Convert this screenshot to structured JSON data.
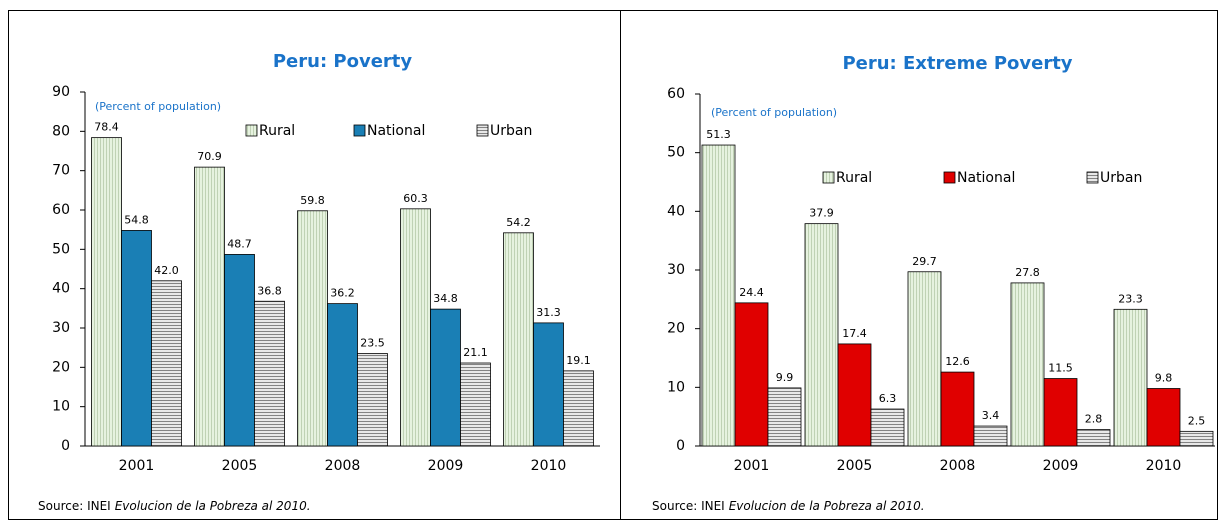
{
  "chart_data": [
    {
      "type": "bar",
      "title": "Peru: Poverty",
      "subtitle": "(Percent of population)",
      "categories": [
        "2001",
        "2005",
        "2008",
        "2009",
        "2010"
      ],
      "series": [
        {
          "name": "Rural",
          "color": "#e3f0dc",
          "hatch": "vertical",
          "values": [
            78.4,
            70.9,
            59.8,
            60.3,
            54.2
          ]
        },
        {
          "name": "National",
          "color": "#1a7fb5",
          "hatch": "none",
          "values": [
            54.8,
            48.7,
            36.2,
            34.8,
            31.3
          ]
        },
        {
          "name": "Urban",
          "color": "#d0d0d0",
          "hatch": "horizontal",
          "values": [
            42,
            36.8,
            23.5,
            21.1,
            19.1
          ],
          "value_labels": [
            "42.0",
            "36.8",
            "23.5",
            "21.1",
            "19.1"
          ]
        }
      ],
      "ylim": [
        0,
        90
      ],
      "yticks": [
        0,
        10,
        20,
        30,
        40,
        50,
        60,
        70,
        80,
        90
      ],
      "grid": false,
      "source_label": "Source: INEI",
      "source_title": "Evolucion de la Pobreza al 2010."
    },
    {
      "type": "bar",
      "title": "Peru: Extreme Poverty",
      "subtitle": "(Percent of population)",
      "categories": [
        "2001",
        "2005",
        "2008",
        "2009",
        "2010"
      ],
      "series": [
        {
          "name": "Rural",
          "color": "#e3f0dc",
          "hatch": "vertical",
          "values": [
            51.3,
            37.9,
            29.7,
            27.8,
            23.3
          ]
        },
        {
          "name": "National",
          "color": "#e00000",
          "hatch": "none",
          "values": [
            24.4,
            17.4,
            12.6,
            11.5,
            9.8
          ]
        },
        {
          "name": "Urban",
          "color": "#d0d0d0",
          "hatch": "horizontal",
          "values": [
            9.9,
            6.3,
            3.4,
            2.8,
            2.5
          ]
        }
      ],
      "ylim": [
        0,
        60
      ],
      "yticks": [
        0,
        10,
        20,
        30,
        40,
        50,
        60
      ],
      "grid": false,
      "source_label": "Source: INEI",
      "source_title": "Evolucion de la Pobreza al 2010."
    }
  ]
}
